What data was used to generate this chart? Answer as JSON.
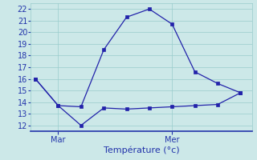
{
  "x_points": [
    0,
    1,
    2,
    3,
    4,
    5,
    6,
    7,
    8,
    9
  ],
  "line1_y": [
    16.0,
    13.7,
    13.6,
    18.5,
    21.3,
    22.0,
    20.7,
    16.6,
    15.6,
    14.8
  ],
  "line2_y": [
    16.0,
    13.7,
    12.0,
    13.5,
    13.4,
    13.5,
    13.6,
    13.7,
    13.8,
    14.8
  ],
  "ylim": [
    11.5,
    22.5
  ],
  "xlim": [
    -0.2,
    9.5
  ],
  "yticks": [
    12,
    13,
    14,
    15,
    16,
    17,
    18,
    19,
    20,
    21,
    22
  ],
  "mar_x": 1.0,
  "mer_x": 6.0,
  "xlabel": "Température (°c)",
  "line_color": "#2222aa",
  "bg_color": "#cce8e8",
  "grid_color": "#99cccc",
  "axis_color": "#2233aa",
  "xlabel_fontsize": 8,
  "tick_fontsize": 7,
  "label_fontsize": 7
}
